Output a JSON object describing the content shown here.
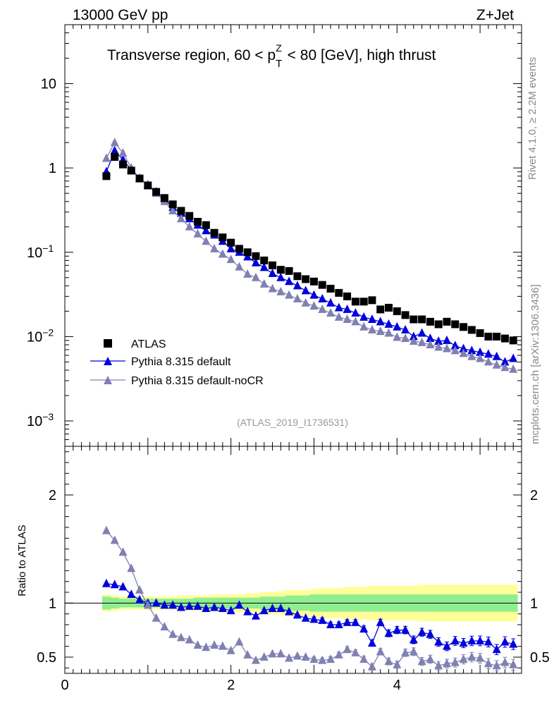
{
  "header": {
    "energy_label": "13000 GeV pp",
    "process_label": "Z+Jet",
    "title": "Transverse region, 60 < pZT < 80 [GeV], high thrust",
    "rivet_label": "Rivet 4.1.0, ≥ 2.2M events",
    "mcplots_label": "mcplots.cern.ch [arXiv:1306.3436]",
    "analysis_label": "(ATLAS_2019_I1736531)"
  },
  "colors": {
    "atlas": "#000000",
    "default": "#0000dd",
    "nocr": "#8080b3",
    "band_inner": "#90ee90",
    "band_outer": "#ffff99"
  },
  "chart_data": {
    "type": "scatter",
    "x": [
      0.5,
      0.6,
      0.7,
      0.8,
      0.9,
      1.0,
      1.1,
      1.2,
      1.3,
      1.4,
      1.5,
      1.6,
      1.7,
      1.8,
      1.9,
      2.0,
      2.1,
      2.2,
      2.3,
      2.4,
      2.5,
      2.6,
      2.7,
      2.8,
      2.9,
      3.0,
      3.1,
      3.2,
      3.3,
      3.4,
      3.5,
      3.6,
      3.7,
      3.8,
      3.9,
      4.0,
      4.1,
      4.2,
      4.3,
      4.4,
      4.5,
      4.6,
      4.7,
      4.8,
      4.9,
      5.0,
      5.1,
      5.2,
      5.3,
      5.4
    ],
    "top_panel": {
      "ylabel": "",
      "yscale": "log",
      "ylim": [
        0.0005,
        50
      ],
      "xlim": [
        0,
        5.5
      ],
      "yticks": [
        {
          "value": 10,
          "label": "10"
        },
        {
          "value": 1,
          "label": "1"
        },
        {
          "value": 0.1,
          "label": "10",
          "exp": "−1"
        },
        {
          "value": 0.01,
          "label": "10",
          "exp": "−2"
        },
        {
          "value": 0.001,
          "label": "10",
          "exp": "−3"
        }
      ],
      "series": [
        {
          "name": "ATLAS",
          "marker": "square",
          "values": [
            0.8,
            1.35,
            1.1,
            0.93,
            0.75,
            0.62,
            0.52,
            0.44,
            0.37,
            0.31,
            0.27,
            0.23,
            0.21,
            0.17,
            0.15,
            0.13,
            0.11,
            0.1,
            0.09,
            0.08,
            0.07,
            0.062,
            0.06,
            0.052,
            0.048,
            0.045,
            0.041,
            0.037,
            0.033,
            0.03,
            0.026,
            0.026,
            0.027,
            0.021,
            0.022,
            0.02,
            0.018,
            0.016,
            0.016,
            0.015,
            0.014,
            0.015,
            0.014,
            0.013,
            0.012,
            0.011,
            0.01,
            0.01,
            0.0095,
            0.009
          ]
        },
        {
          "name": "Pythia 8.315 default",
          "marker": "triangle",
          "values": [
            0.9,
            1.6,
            1.25,
            0.95,
            0.75,
            0.63,
            0.52,
            0.43,
            0.34,
            0.29,
            0.25,
            0.21,
            0.18,
            0.16,
            0.135,
            0.11,
            0.1,
            0.088,
            0.075,
            0.066,
            0.056,
            0.05,
            0.045,
            0.04,
            0.035,
            0.031,
            0.028,
            0.025,
            0.022,
            0.021,
            0.019,
            0.017,
            0.016,
            0.015,
            0.014,
            0.013,
            0.012,
            0.01,
            0.011,
            0.0095,
            0.0088,
            0.009,
            0.0078,
            0.0072,
            0.0068,
            0.0065,
            0.0062,
            0.0058,
            0.005,
            0.0055
          ]
        },
        {
          "name": "Pythia 8.315 default-noCR",
          "marker": "triangle",
          "values": [
            1.3,
            2.0,
            1.5,
            1.0,
            0.75,
            0.62,
            0.5,
            0.4,
            0.31,
            0.25,
            0.2,
            0.165,
            0.135,
            0.11,
            0.095,
            0.082,
            0.067,
            0.055,
            0.05,
            0.042,
            0.037,
            0.034,
            0.031,
            0.028,
            0.025,
            0.023,
            0.021,
            0.019,
            0.017,
            0.016,
            0.015,
            0.013,
            0.012,
            0.0115,
            0.011,
            0.0098,
            0.0095,
            0.0088,
            0.0085,
            0.008,
            0.0075,
            0.0072,
            0.0068,
            0.0063,
            0.0058,
            0.0055,
            0.005,
            0.0046,
            0.0043,
            0.0041
          ]
        }
      ]
    },
    "ratio_panel": {
      "ylabel": "Ratio to ATLAS",
      "ylim": [
        0.35,
        2.45
      ],
      "xlim": [
        0,
        5.5
      ],
      "yticks": [
        {
          "value": 0.5,
          "label": "0.5"
        },
        {
          "value": 1,
          "label": "1"
        },
        {
          "value": 2,
          "label": "2"
        }
      ],
      "xticks": [
        {
          "value": 0,
          "label": "0"
        },
        {
          "value": 2,
          "label": "2"
        },
        {
          "value": 4,
          "label": "4"
        }
      ],
      "band_inner": [
        0.06,
        0.05,
        0.04,
        0.04,
        0.04,
        0.04,
        0.04,
        0.04,
        0.04,
        0.04,
        0.04,
        0.05,
        0.05,
        0.05,
        0.05,
        0.05,
        0.05,
        0.05,
        0.05,
        0.06,
        0.06,
        0.06,
        0.07,
        0.07,
        0.07,
        0.08,
        0.08,
        0.08,
        0.08,
        0.08,
        0.08,
        0.08,
        0.08,
        0.08,
        0.08,
        0.08,
        0.08,
        0.08,
        0.08,
        0.08,
        0.08,
        0.08,
        0.08,
        0.08,
        0.08,
        0.08,
        0.08,
        0.08,
        0.08,
        0.08
      ],
      "band_outer": [
        0.08,
        0.07,
        0.06,
        0.06,
        0.06,
        0.06,
        0.06,
        0.06,
        0.06,
        0.07,
        0.07,
        0.07,
        0.07,
        0.08,
        0.08,
        0.08,
        0.08,
        0.09,
        0.09,
        0.1,
        0.1,
        0.11,
        0.12,
        0.12,
        0.12,
        0.13,
        0.14,
        0.14,
        0.14,
        0.15,
        0.15,
        0.15,
        0.16,
        0.16,
        0.16,
        0.16,
        0.16,
        0.16,
        0.17,
        0.17,
        0.17,
        0.17,
        0.17,
        0.17,
        0.17,
        0.17,
        0.17,
        0.17,
        0.17,
        0.17
      ],
      "series": [
        {
          "name": "Pythia 8.315 default",
          "values": [
            1.18,
            1.17,
            1.15,
            1.08,
            1.03,
            1.0,
            1.0,
            0.98,
            0.98,
            0.96,
            0.97,
            0.97,
            0.95,
            0.96,
            0.95,
            0.93,
            0.98,
            0.92,
            0.88,
            0.93,
            0.95,
            0.95,
            0.92,
            0.89,
            0.86,
            0.85,
            0.84,
            0.8,
            0.8,
            0.82,
            0.82,
            0.76,
            0.63,
            0.82,
            0.72,
            0.75,
            0.75,
            0.66,
            0.73,
            0.71,
            0.64,
            0.6,
            0.65,
            0.63,
            0.65,
            0.65,
            0.64,
            0.57,
            0.64,
            0.62
          ]
        },
        {
          "name": "Pythia 8.315 default-noCR",
          "values": [
            1.67,
            1.58,
            1.47,
            1.32,
            1.12,
            0.98,
            0.86,
            0.78,
            0.71,
            0.68,
            0.66,
            0.61,
            0.59,
            0.61,
            0.6,
            0.56,
            0.64,
            0.52,
            0.47,
            0.5,
            0.53,
            0.53,
            0.49,
            0.51,
            0.5,
            0.48,
            0.47,
            0.48,
            0.52,
            0.57,
            0.54,
            0.48,
            0.41,
            0.55,
            0.46,
            0.43,
            0.54,
            0.55,
            0.46,
            0.48,
            0.42,
            0.44,
            0.45,
            0.48,
            0.5,
            0.49,
            0.44,
            0.42,
            0.45,
            0.43
          ]
        }
      ]
    }
  }
}
